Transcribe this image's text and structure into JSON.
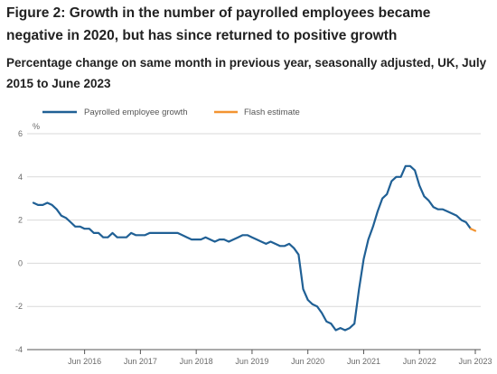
{
  "title": "Figure 2: Growth in the number of payrolled employees became negative in 2020, but has since returned to positive growth",
  "subtitle": "Percentage change on same month in previous year, seasonally adjusted, UK, July 2015 to June 2023",
  "chart_data": {
    "type": "line",
    "ylabel": "%",
    "ylim": [
      -4,
      6
    ],
    "yticks": [
      -4,
      -2,
      0,
      2,
      4,
      6
    ],
    "xlim": [
      "2015-07",
      "2023-06"
    ],
    "xticks": [
      {
        "label": "Jun 2016",
        "date": "2016-06"
      },
      {
        "label": "Jun 2017",
        "date": "2017-06"
      },
      {
        "label": "Jun 2018",
        "date": "2018-06"
      },
      {
        "label": "Jun 2019",
        "date": "2019-06"
      },
      {
        "label": "Jun 2020",
        "date": "2020-06"
      },
      {
        "label": "Jun 2021",
        "date": "2021-06"
      },
      {
        "label": "Jun 2022",
        "date": "2022-06"
      },
      {
        "label": "Jun 2023",
        "date": "2023-06"
      }
    ],
    "grid": "horizontal",
    "legend_position": "top-left",
    "series": [
      {
        "name": "Payrolled employee growth",
        "color": "#206095",
        "x": [
          "2015-07",
          "2015-08",
          "2015-09",
          "2015-10",
          "2015-11",
          "2015-12",
          "2016-01",
          "2016-02",
          "2016-03",
          "2016-04",
          "2016-05",
          "2016-06",
          "2016-07",
          "2016-08",
          "2016-09",
          "2016-10",
          "2016-11",
          "2016-12",
          "2017-01",
          "2017-02",
          "2017-03",
          "2017-04",
          "2017-05",
          "2017-06",
          "2017-07",
          "2017-08",
          "2017-09",
          "2017-10",
          "2017-11",
          "2017-12",
          "2018-01",
          "2018-02",
          "2018-03",
          "2018-04",
          "2018-05",
          "2018-06",
          "2018-07",
          "2018-08",
          "2018-09",
          "2018-10",
          "2018-11",
          "2018-12",
          "2019-01",
          "2019-02",
          "2019-03",
          "2019-04",
          "2019-05",
          "2019-06",
          "2019-07",
          "2019-08",
          "2019-09",
          "2019-10",
          "2019-11",
          "2019-12",
          "2020-01",
          "2020-02",
          "2020-03",
          "2020-04",
          "2020-05",
          "2020-06",
          "2020-07",
          "2020-08",
          "2020-09",
          "2020-10",
          "2020-11",
          "2020-12",
          "2021-01",
          "2021-02",
          "2021-03",
          "2021-04",
          "2021-05",
          "2021-06",
          "2021-07",
          "2021-08",
          "2021-09",
          "2021-10",
          "2021-11",
          "2021-12",
          "2022-01",
          "2022-02",
          "2022-03",
          "2022-04",
          "2022-05",
          "2022-06",
          "2022-07",
          "2022-08",
          "2022-09",
          "2022-10",
          "2022-11",
          "2022-12",
          "2023-01",
          "2023-02",
          "2023-03",
          "2023-04",
          "2023-05"
        ],
        "y": [
          2.8,
          2.7,
          2.7,
          2.8,
          2.7,
          2.5,
          2.2,
          2.1,
          1.9,
          1.7,
          1.7,
          1.6,
          1.6,
          1.4,
          1.4,
          1.2,
          1.2,
          1.4,
          1.2,
          1.2,
          1.2,
          1.4,
          1.3,
          1.3,
          1.3,
          1.4,
          1.4,
          1.4,
          1.4,
          1.4,
          1.4,
          1.4,
          1.3,
          1.2,
          1.1,
          1.1,
          1.1,
          1.2,
          1.1,
          1.0,
          1.1,
          1.1,
          1.0,
          1.1,
          1.2,
          1.3,
          1.3,
          1.2,
          1.1,
          1.0,
          0.9,
          1.0,
          0.9,
          0.8,
          0.8,
          0.9,
          0.7,
          0.4,
          -1.2,
          -1.7,
          -1.9,
          -2.0,
          -2.3,
          -2.7,
          -2.8,
          -3.1,
          -3.0,
          -3.1,
          -3.0,
          -2.8,
          -1.2,
          0.2,
          1.1,
          1.7,
          2.4,
          3.0,
          3.2,
          3.8,
          4.0,
          4.0,
          4.5,
          4.5,
          4.3,
          3.6,
          3.1,
          2.9,
          2.6,
          2.5,
          2.5,
          2.4,
          2.3,
          2.2,
          2.0,
          1.9,
          1.6
        ]
      },
      {
        "name": "Flash estimate",
        "color": "#f39431",
        "x": [
          "2023-05",
          "2023-06"
        ],
        "y": [
          1.6,
          1.5
        ]
      }
    ]
  }
}
